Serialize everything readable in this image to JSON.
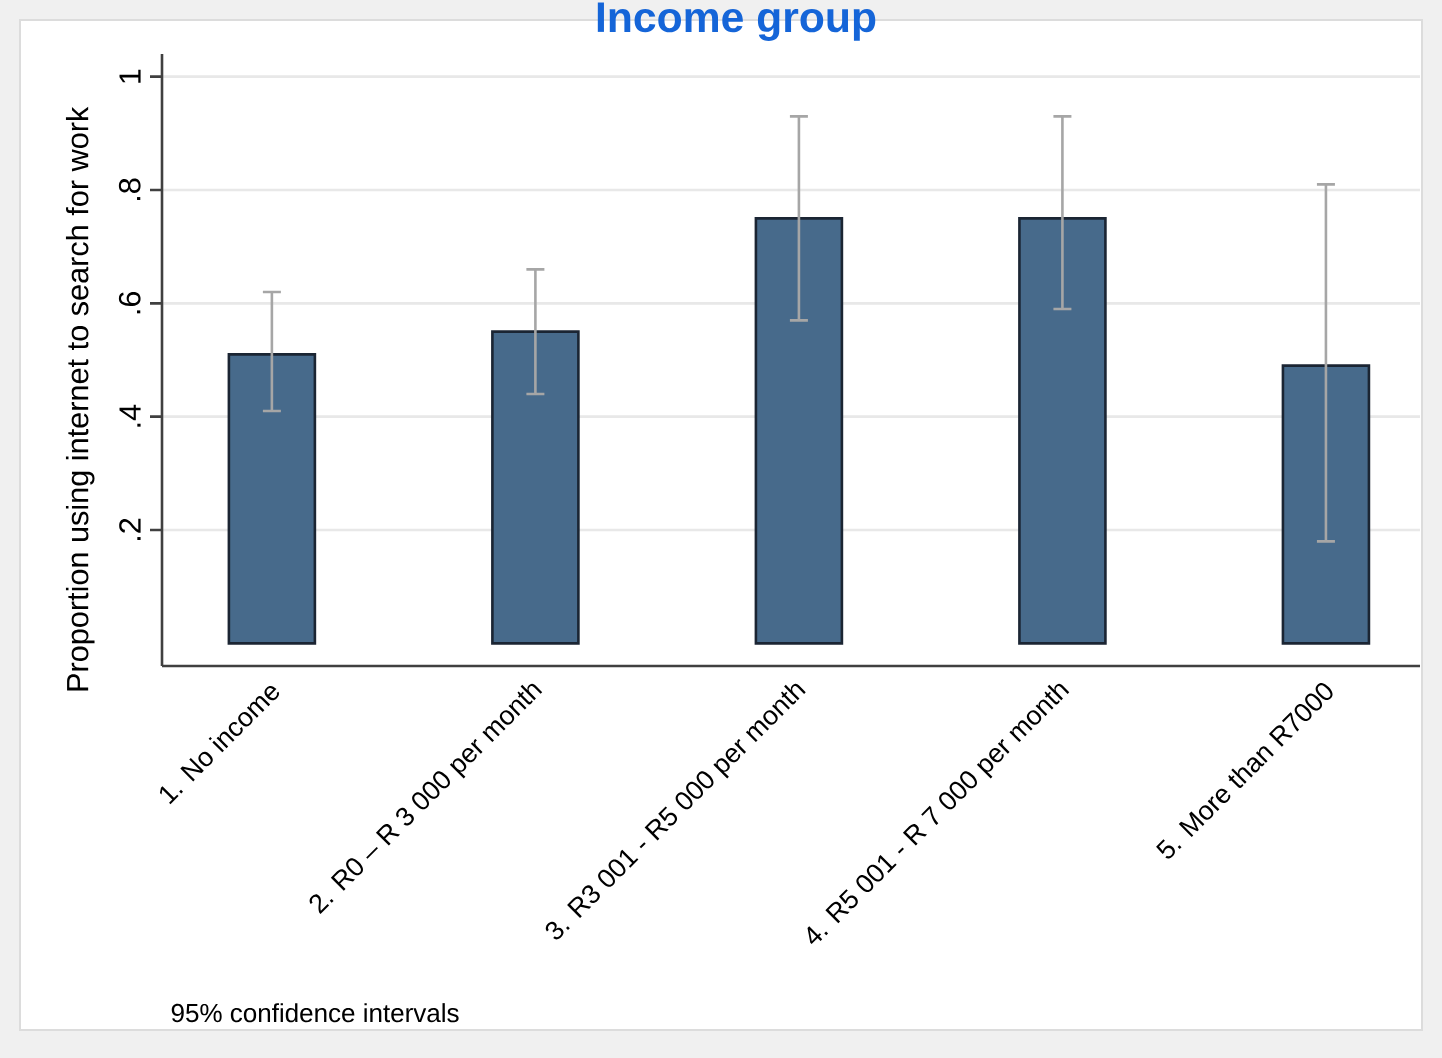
{
  "chart_data": {
    "type": "bar",
    "title": "Income group",
    "ylabel": "Proportion using internet to search for work",
    "categories": [
      "1. No income",
      "2. R0 – R 3 000 per month",
      "3. R3 001 - R5 000 per month",
      "4. R5 001 - R 7 000 per month",
      "5. More than R7000"
    ],
    "values": [
      0.51,
      0.55,
      0.75,
      0.75,
      0.49
    ],
    "errors": [
      [
        0.41,
        0.62
      ],
      [
        0.44,
        0.66
      ],
      [
        0.57,
        0.93
      ],
      [
        0.59,
        0.93
      ],
      [
        0.18,
        0.81
      ]
    ],
    "color": "#476a8b",
    "ylim": [
      -0.04,
      1.04
    ],
    "yticks": [
      {
        "value": 0.2,
        "label": ".2"
      },
      {
        "value": 0.4,
        "label": ".4"
      },
      {
        "value": 0.6,
        "label": ".6"
      },
      {
        "value": 0.8,
        "label": ".8"
      },
      1
    ],
    "grid": "y",
    "annotations": [
      "95% confidence intervals"
    ]
  }
}
